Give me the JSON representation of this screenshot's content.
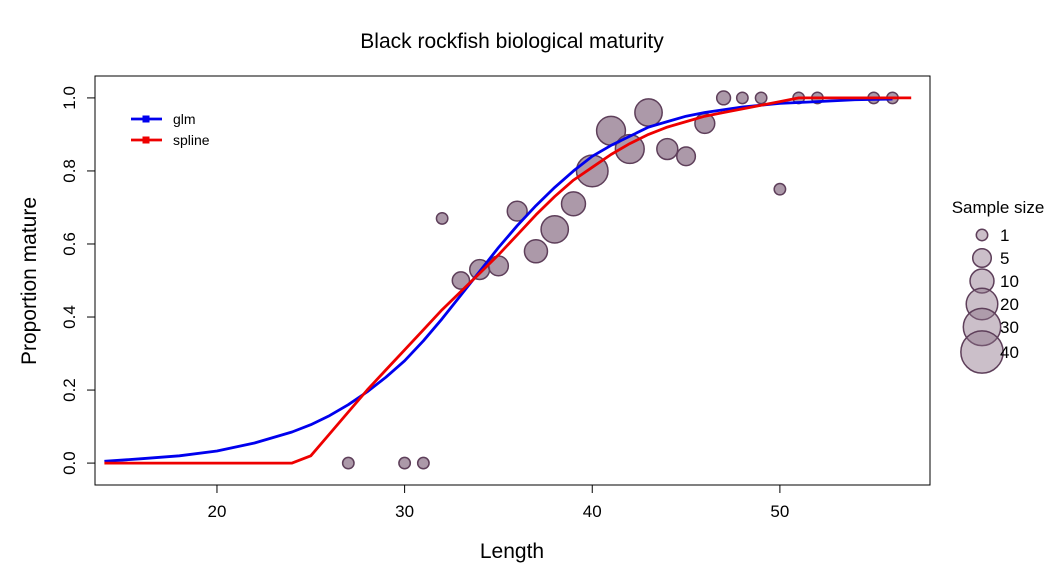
{
  "chart_data": {
    "type": "scatter",
    "title": "Black rockfish biological maturity",
    "xlabel": "Length",
    "ylabel": "Proportion mature",
    "xlim": [
      13.5,
      58
    ],
    "ylim": [
      -0.06,
      1.06
    ],
    "xticks": [
      20,
      30,
      40,
      50
    ],
    "yticks": [
      0.0,
      0.2,
      0.4,
      0.6,
      0.8,
      1.0
    ],
    "xtick_labels": [
      "20",
      "30",
      "40",
      "50"
    ],
    "ytick_labels": [
      "0.0",
      "0.2",
      "0.4",
      "0.6",
      "0.8",
      "1.0"
    ],
    "grid": false,
    "points": [
      {
        "x": 27,
        "y": 0.0,
        "n": 1
      },
      {
        "x": 30,
        "y": 0.0,
        "n": 1
      },
      {
        "x": 31,
        "y": 0.0,
        "n": 1
      },
      {
        "x": 32,
        "y": 0.67,
        "n": 1
      },
      {
        "x": 33,
        "y": 0.5,
        "n": 4
      },
      {
        "x": 34,
        "y": 0.53,
        "n": 6
      },
      {
        "x": 35,
        "y": 0.54,
        "n": 6
      },
      {
        "x": 36,
        "y": 0.69,
        "n": 6
      },
      {
        "x": 37,
        "y": 0.58,
        "n": 9
      },
      {
        "x": 38,
        "y": 0.64,
        "n": 14
      },
      {
        "x": 39,
        "y": 0.71,
        "n": 10
      },
      {
        "x": 40,
        "y": 0.8,
        "n": 20
      },
      {
        "x": 41,
        "y": 0.91,
        "n": 16
      },
      {
        "x": 42,
        "y": 0.86,
        "n": 16
      },
      {
        "x": 43,
        "y": 0.96,
        "n": 14
      },
      {
        "x": 44,
        "y": 0.86,
        "n": 7
      },
      {
        "x": 45,
        "y": 0.84,
        "n": 5
      },
      {
        "x": 46,
        "y": 0.93,
        "n": 6
      },
      {
        "x": 47,
        "y": 1.0,
        "n": 2
      },
      {
        "x": 48,
        "y": 1.0,
        "n": 1
      },
      {
        "x": 49,
        "y": 1.0,
        "n": 1
      },
      {
        "x": 50,
        "y": 0.75,
        "n": 1
      },
      {
        "x": 51,
        "y": 1.0,
        "n": 1
      },
      {
        "x": 52,
        "y": 1.0,
        "n": 1
      },
      {
        "x": 55,
        "y": 1.0,
        "n": 1
      },
      {
        "x": 56,
        "y": 1.0,
        "n": 1
      }
    ],
    "series": [
      {
        "name": "glm",
        "color": "#0000ee",
        "x": [
          14,
          16,
          18,
          20,
          22,
          24,
          25,
          26,
          27,
          28,
          29,
          30,
          31,
          32,
          33,
          34,
          35,
          36,
          37,
          38,
          39,
          40,
          41,
          42,
          43,
          44,
          45,
          46,
          48,
          50,
          52,
          54,
          56
        ],
        "y": [
          0.005,
          0.012,
          0.02,
          0.033,
          0.055,
          0.085,
          0.105,
          0.13,
          0.16,
          0.195,
          0.235,
          0.28,
          0.335,
          0.395,
          0.46,
          0.525,
          0.59,
          0.65,
          0.705,
          0.755,
          0.8,
          0.84,
          0.87,
          0.895,
          0.92,
          0.935,
          0.95,
          0.96,
          0.975,
          0.985,
          0.99,
          0.995,
          0.997
        ]
      },
      {
        "name": "spline",
        "color": "#ee0000",
        "x": [
          14,
          20,
          24,
          25,
          26,
          27,
          28,
          29,
          30,
          31,
          32,
          33,
          34,
          35,
          36,
          37,
          38,
          39,
          40,
          41,
          42,
          43,
          44,
          45,
          46,
          47,
          48,
          49,
          50,
          51,
          52,
          55,
          57
        ],
        "y": [
          0.0,
          0.0,
          0.0,
          0.02,
          0.08,
          0.14,
          0.2,
          0.255,
          0.31,
          0.365,
          0.42,
          0.47,
          0.52,
          0.57,
          0.625,
          0.68,
          0.73,
          0.775,
          0.81,
          0.845,
          0.875,
          0.9,
          0.92,
          0.935,
          0.95,
          0.96,
          0.97,
          0.98,
          0.99,
          1.0,
          1.0,
          1.0,
          1.0
        ]
      }
    ],
    "legend": {
      "placement": "top-left",
      "entries": [
        {
          "label": "glm",
          "color": "#0000ee"
        },
        {
          "label": "spline",
          "color": "#ee0000"
        }
      ]
    },
    "size_legend": {
      "title": "Sample size",
      "placement": "right",
      "entries": [
        {
          "label": "1",
          "n": 1
        },
        {
          "label": "5",
          "n": 5
        },
        {
          "label": "10",
          "n": 10
        },
        {
          "label": "20",
          "n": 20
        },
        {
          "label": "30",
          "n": 30
        },
        {
          "label": "40",
          "n": 40
        }
      ]
    },
    "point_fill": "#8c7188",
    "point_stroke": "#5e3f5a"
  }
}
